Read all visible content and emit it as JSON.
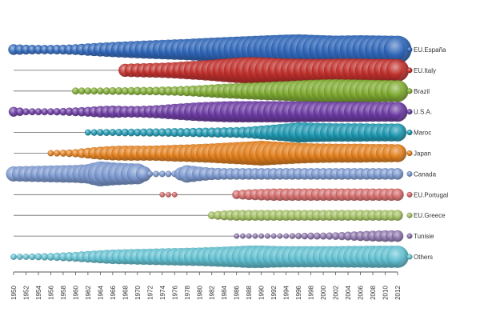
{
  "chart_data": {
    "type": "bubble-timeline",
    "title": "",
    "xlabel": "",
    "ylabel": "",
    "xlim": [
      1950,
      2012
    ],
    "x_ticks": [
      "1950",
      "1952",
      "1954",
      "1956",
      "1958",
      "1960",
      "1962",
      "1964",
      "1966",
      "1968",
      "1970",
      "1972",
      "1974",
      "1976",
      "1978",
      "1980",
      "1982",
      "1984",
      "1986",
      "1988",
      "1990",
      "1992",
      "1994",
      "1996",
      "1998",
      "2000",
      "2002",
      "2004",
      "2006",
      "2008",
      "2010",
      "2012"
    ],
    "legend_position": "right",
    "size_scale_max": 100,
    "series": [
      {
        "name": "EU.España",
        "color": "#2f66b8",
        "points": [
          [
            1950,
            12
          ],
          [
            1952,
            10
          ],
          [
            1954,
            9
          ],
          [
            1956,
            9
          ],
          [
            1958,
            10
          ],
          [
            1960,
            12
          ],
          [
            1962,
            16
          ],
          [
            1964,
            20
          ],
          [
            1966,
            24
          ],
          [
            1968,
            28
          ],
          [
            1970,
            32
          ],
          [
            1972,
            36
          ],
          [
            1974,
            40
          ],
          [
            1976,
            44
          ],
          [
            1978,
            48
          ],
          [
            1980,
            54
          ],
          [
            1982,
            60
          ],
          [
            1984,
            66
          ],
          [
            1986,
            72
          ],
          [
            1988,
            78
          ],
          [
            1990,
            84
          ],
          [
            1992,
            90
          ],
          [
            1994,
            96
          ],
          [
            1996,
            100
          ],
          [
            1998,
            94
          ],
          [
            2000,
            88
          ],
          [
            2002,
            84
          ],
          [
            2004,
            86
          ],
          [
            2006,
            88
          ],
          [
            2008,
            86
          ],
          [
            2010,
            84
          ],
          [
            2012,
            82
          ]
        ]
      },
      {
        "name": "EU.Italy",
        "color": "#c0302c",
        "points": [
          [
            1968,
            18
          ],
          [
            1970,
            20
          ],
          [
            1972,
            22
          ],
          [
            1974,
            24
          ],
          [
            1976,
            28
          ],
          [
            1978,
            34
          ],
          [
            1980,
            40
          ],
          [
            1982,
            48
          ],
          [
            1984,
            58
          ],
          [
            1986,
            68
          ],
          [
            1988,
            76
          ],
          [
            1990,
            72
          ],
          [
            1992,
            66
          ],
          [
            1994,
            60
          ],
          [
            1996,
            58
          ],
          [
            1998,
            56
          ],
          [
            2000,
            56
          ],
          [
            2002,
            58
          ],
          [
            2004,
            60
          ],
          [
            2006,
            58
          ],
          [
            2008,
            56
          ],
          [
            2010,
            56
          ],
          [
            2012,
            54
          ]
        ]
      },
      {
        "name": "Brazil",
        "color": "#7fab32",
        "points": [
          [
            1960,
            5
          ],
          [
            1962,
            5
          ],
          [
            1964,
            5
          ],
          [
            1966,
            6
          ],
          [
            1968,
            6
          ],
          [
            1970,
            7
          ],
          [
            1972,
            7
          ],
          [
            1974,
            8
          ],
          [
            1976,
            9
          ],
          [
            1978,
            11
          ],
          [
            1980,
            14
          ],
          [
            1982,
            18
          ],
          [
            1984,
            22
          ],
          [
            1986,
            26
          ],
          [
            1988,
            30
          ],
          [
            1990,
            34
          ],
          [
            1992,
            38
          ],
          [
            1994,
            42
          ],
          [
            1996,
            48
          ],
          [
            1998,
            54
          ],
          [
            2000,
            58
          ],
          [
            2002,
            60
          ],
          [
            2004,
            58
          ],
          [
            2006,
            56
          ],
          [
            2008,
            54
          ],
          [
            2010,
            52
          ],
          [
            2012,
            50
          ]
        ]
      },
      {
        "name": "U.S.A.",
        "color": "#6b3aa2",
        "points": [
          [
            1950,
            10
          ],
          [
            1952,
            5
          ],
          [
            1954,
            5
          ],
          [
            1956,
            5
          ],
          [
            1958,
            6
          ],
          [
            1960,
            8
          ],
          [
            1962,
            10
          ],
          [
            1964,
            14
          ],
          [
            1966,
            16
          ],
          [
            1968,
            14
          ],
          [
            1970,
            14
          ],
          [
            1972,
            16
          ],
          [
            1974,
            20
          ],
          [
            1976,
            26
          ],
          [
            1978,
            32
          ],
          [
            1980,
            38
          ],
          [
            1982,
            42
          ],
          [
            1984,
            46
          ],
          [
            1986,
            48
          ],
          [
            1988,
            48
          ],
          [
            1990,
            48
          ],
          [
            1992,
            48
          ],
          [
            1994,
            48
          ],
          [
            1996,
            46
          ],
          [
            1998,
            46
          ],
          [
            2000,
            44
          ],
          [
            2002,
            44
          ],
          [
            2004,
            44
          ],
          [
            2006,
            44
          ],
          [
            2008,
            42
          ],
          [
            2010,
            42
          ],
          [
            2012,
            42
          ]
        ]
      },
      {
        "name": "Maroc",
        "color": "#1d97b0",
        "points": [
          [
            1962,
            4
          ],
          [
            1964,
            5
          ],
          [
            1966,
            5
          ],
          [
            1968,
            6
          ],
          [
            1970,
            6
          ],
          [
            1972,
            7
          ],
          [
            1974,
            7
          ],
          [
            1976,
            8
          ],
          [
            1978,
            8
          ],
          [
            1980,
            9
          ],
          [
            1982,
            10
          ],
          [
            1984,
            11
          ],
          [
            1986,
            12
          ],
          [
            1988,
            14
          ],
          [
            1990,
            20
          ],
          [
            1992,
            26
          ],
          [
            1994,
            34
          ],
          [
            1996,
            44
          ],
          [
            1998,
            40
          ],
          [
            2000,
            38
          ],
          [
            2002,
            36
          ],
          [
            2004,
            36
          ],
          [
            2006,
            36
          ],
          [
            2008,
            34
          ],
          [
            2010,
            34
          ],
          [
            2012,
            34
          ]
        ]
      },
      {
        "name": "Japan",
        "color": "#e3801e",
        "points": [
          [
            1956,
            4
          ],
          [
            1958,
            5
          ],
          [
            1960,
            7
          ],
          [
            1962,
            12
          ],
          [
            1964,
            18
          ],
          [
            1966,
            22
          ],
          [
            1968,
            24
          ],
          [
            1970,
            24
          ],
          [
            1972,
            24
          ],
          [
            1974,
            26
          ],
          [
            1976,
            30
          ],
          [
            1978,
            32
          ],
          [
            1980,
            36
          ],
          [
            1982,
            40
          ],
          [
            1984,
            46
          ],
          [
            1986,
            52
          ],
          [
            1988,
            58
          ],
          [
            1990,
            66
          ],
          [
            1992,
            58
          ],
          [
            1994,
            52
          ],
          [
            1996,
            46
          ],
          [
            1998,
            42
          ],
          [
            2000,
            40
          ],
          [
            2002,
            38
          ],
          [
            2004,
            38
          ],
          [
            2006,
            38
          ],
          [
            2008,
            36
          ],
          [
            2010,
            36
          ],
          [
            2012,
            34
          ]
        ]
      },
      {
        "name": "Canada",
        "color": "#7b98cf",
        "points": [
          [
            1950,
            24
          ],
          [
            1952,
            26
          ],
          [
            1954,
            28
          ],
          [
            1956,
            30
          ],
          [
            1958,
            32
          ],
          [
            1960,
            34
          ],
          [
            1962,
            40
          ],
          [
            1964,
            66
          ],
          [
            1966,
            56
          ],
          [
            1968,
            50
          ],
          [
            1970,
            46
          ],
          [
            1972,
            4
          ],
          [
            1974,
            4
          ],
          [
            1976,
            4
          ],
          [
            1978,
            32
          ],
          [
            1980,
            22
          ],
          [
            1982,
            16
          ],
          [
            1984,
            14
          ],
          [
            1986,
            14
          ],
          [
            1988,
            14
          ],
          [
            1990,
            14
          ],
          [
            1992,
            14
          ],
          [
            1994,
            14
          ],
          [
            1996,
            14
          ],
          [
            1998,
            14
          ],
          [
            2000,
            14
          ],
          [
            2002,
            14
          ],
          [
            2004,
            14
          ],
          [
            2006,
            14
          ],
          [
            2008,
            14
          ],
          [
            2010,
            14
          ],
          [
            2012,
            14
          ]
        ]
      },
      {
        "name": "EU.Portugal",
        "color": "#d26a69",
        "points": [
          [
            1974,
            3
          ],
          [
            1976,
            3
          ],
          [
            1986,
            8
          ],
          [
            1988,
            12
          ],
          [
            1990,
            14
          ],
          [
            1992,
            16
          ],
          [
            1994,
            16
          ],
          [
            1996,
            16
          ],
          [
            1998,
            16
          ],
          [
            2000,
            16
          ],
          [
            2002,
            16
          ],
          [
            2004,
            16
          ],
          [
            2006,
            16
          ],
          [
            2008,
            16
          ],
          [
            2010,
            16
          ],
          [
            2012,
            16
          ]
        ]
      },
      {
        "name": "EU.Greece",
        "color": "#a2bf61",
        "points": [
          [
            1982,
            6
          ],
          [
            1984,
            10
          ],
          [
            1986,
            12
          ],
          [
            1988,
            12
          ],
          [
            1990,
            12
          ],
          [
            1992,
            12
          ],
          [
            1994,
            12
          ],
          [
            1996,
            12
          ],
          [
            1998,
            12
          ],
          [
            2000,
            12
          ],
          [
            2002,
            12
          ],
          [
            2004,
            12
          ],
          [
            2006,
            12
          ],
          [
            2008,
            12
          ],
          [
            2010,
            12
          ],
          [
            2012,
            12
          ]
        ]
      },
      {
        "name": "Tunisie",
        "color": "#8b73aa",
        "points": [
          [
            1986,
            3
          ],
          [
            1988,
            3
          ],
          [
            1990,
            3
          ],
          [
            1992,
            3
          ],
          [
            1994,
            3
          ],
          [
            1996,
            4
          ],
          [
            1998,
            5
          ],
          [
            2000,
            5
          ],
          [
            2002,
            6
          ],
          [
            2004,
            8
          ],
          [
            2006,
            10
          ],
          [
            2008,
            12
          ],
          [
            2010,
            14
          ],
          [
            2012,
            14
          ]
        ]
      },
      {
        "name": "Others",
        "color": "#62c0d1",
        "points": [
          [
            1950,
            4
          ],
          [
            1952,
            4
          ],
          [
            1954,
            5
          ],
          [
            1956,
            6
          ],
          [
            1958,
            8
          ],
          [
            1960,
            10
          ],
          [
            1962,
            14
          ],
          [
            1964,
            18
          ],
          [
            1966,
            22
          ],
          [
            1968,
            24
          ],
          [
            1970,
            26
          ],
          [
            1972,
            28
          ],
          [
            1974,
            30
          ],
          [
            1976,
            32
          ],
          [
            1978,
            34
          ],
          [
            1980,
            36
          ],
          [
            1982,
            40
          ],
          [
            1984,
            44
          ],
          [
            1986,
            48
          ],
          [
            1988,
            54
          ],
          [
            1990,
            54
          ],
          [
            1992,
            50
          ],
          [
            1994,
            48
          ],
          [
            1996,
            48
          ],
          [
            1998,
            48
          ],
          [
            2000,
            48
          ],
          [
            2002,
            48
          ],
          [
            2004,
            50
          ],
          [
            2006,
            50
          ],
          [
            2008,
            52
          ],
          [
            2010,
            52
          ],
          [
            2012,
            52
          ]
        ]
      }
    ]
  }
}
